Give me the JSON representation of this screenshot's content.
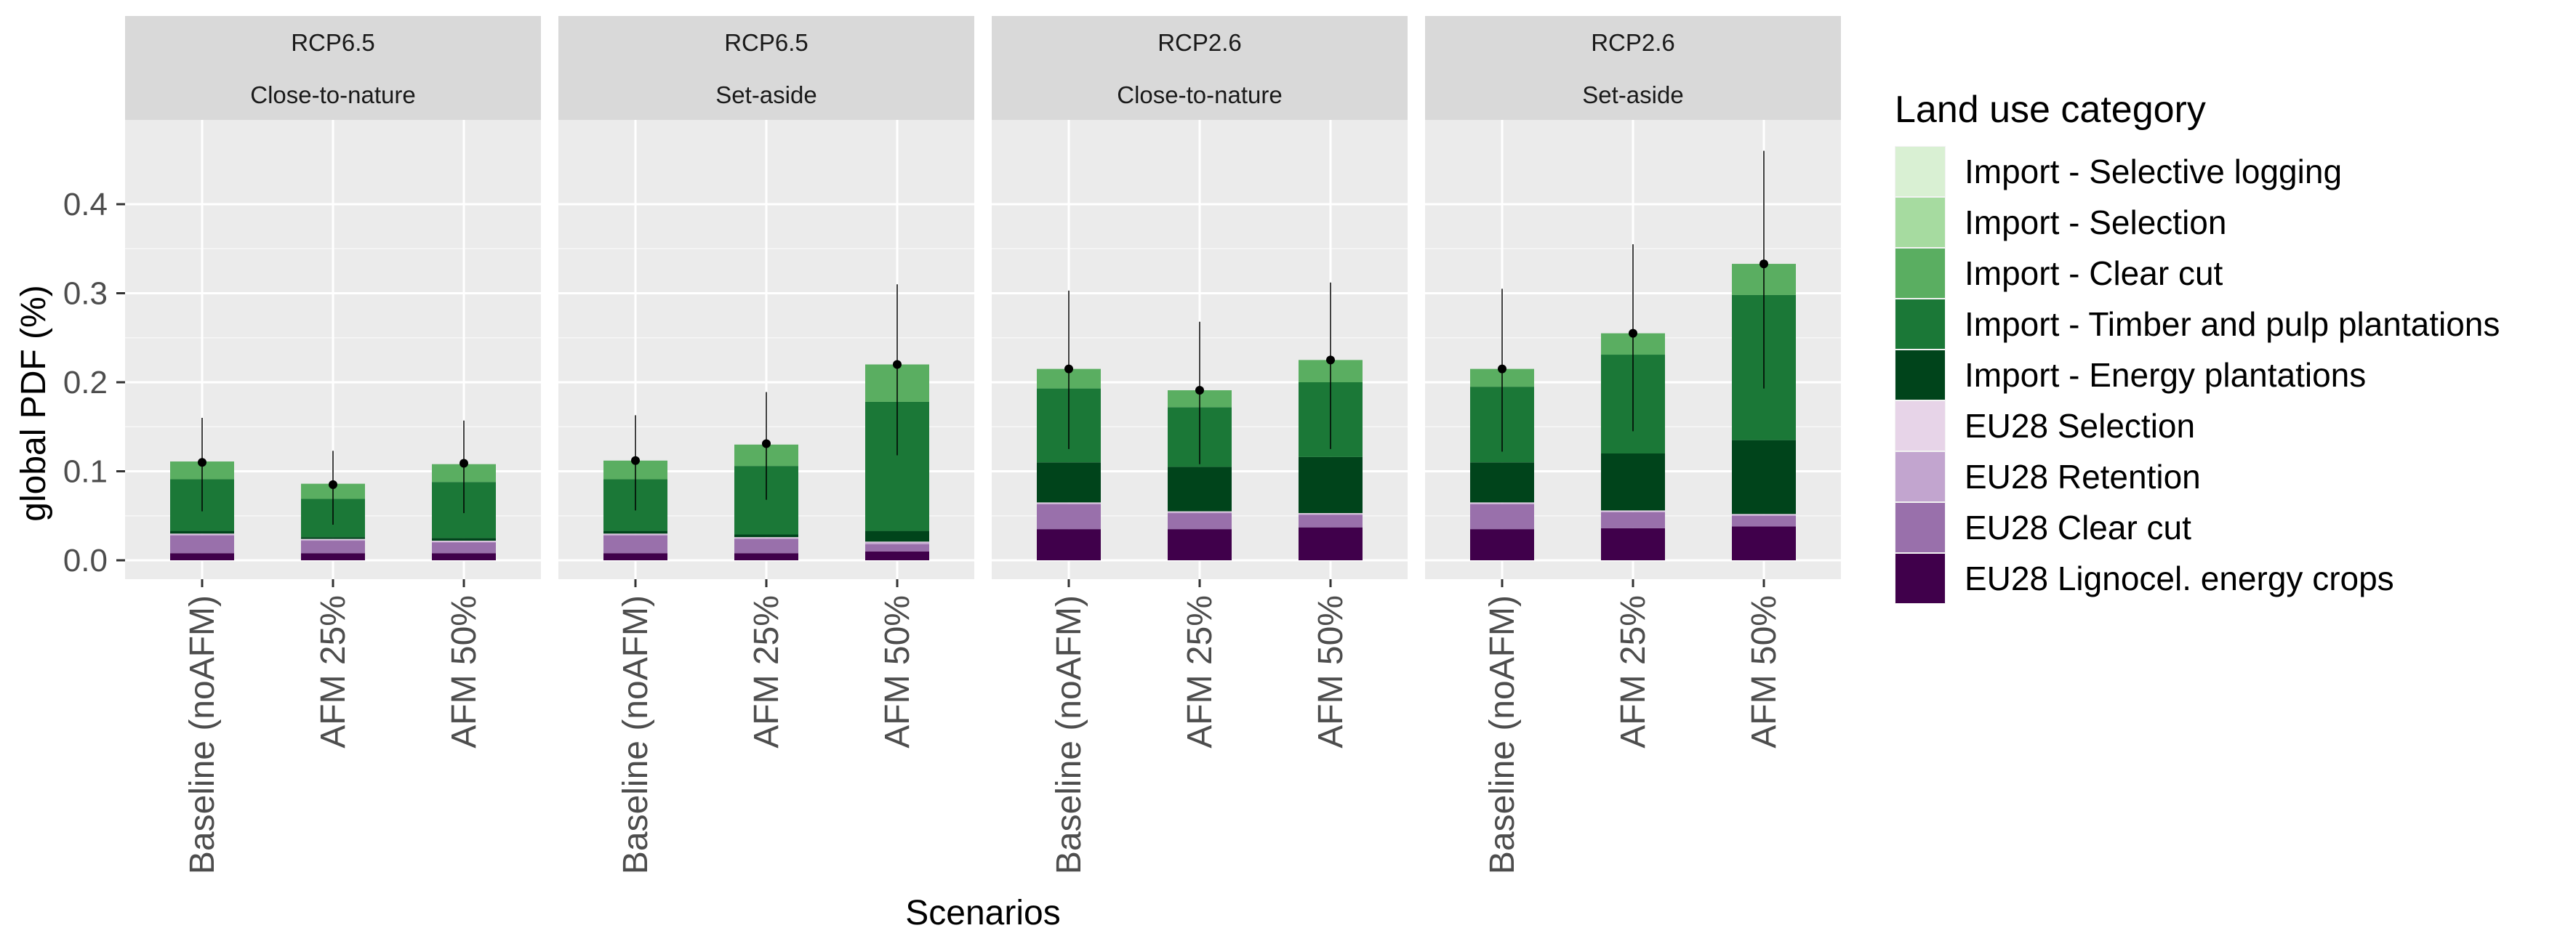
{
  "chart_data": {
    "type": "bar",
    "stacked": true,
    "ylabel": "global PDF (%)",
    "xlabel": "Scenarios",
    "ylim": [
      -0.01,
      0.47
    ],
    "y_ticks": [
      0.0,
      0.1,
      0.2,
      0.3,
      0.4
    ],
    "y_tick_labels": [
      "0.0",
      "0.1",
      "0.2",
      "0.3",
      "0.4"
    ],
    "grid": true,
    "legend_position": "right",
    "legend_title": "Land use category",
    "categories": [
      "Baseline (noAFM)",
      "AFM 25%",
      "AFM 50%"
    ],
    "layers": [
      {
        "name": "EU28 Lignocel. energy crops",
        "color": "#40004b"
      },
      {
        "name": "EU28 Clear cut",
        "color": "#9970ab"
      },
      {
        "name": "EU28 Retention",
        "color": "#c2a5cf"
      },
      {
        "name": "EU28 Selection",
        "color": "#e7d4e8"
      },
      {
        "name": "Import - Energy plantations",
        "color": "#00441b"
      },
      {
        "name": "Import - Timber and pulp plantations",
        "color": "#1b7837"
      },
      {
        "name": "Import - Clear cut",
        "color": "#5aae61"
      },
      {
        "name": "Import - Selection",
        "color": "#a6dba0"
      },
      {
        "name": "Import - Selective logging",
        "color": "#d9f0d3"
      }
    ],
    "legend_order": [
      "Import - Selective logging",
      "Import - Selection",
      "Import - Clear cut",
      "Import - Timber and pulp plantations",
      "Import - Energy plantations",
      "EU28 Selection",
      "EU28 Retention",
      "EU28 Clear cut",
      "EU28 Lignocel. energy crops"
    ],
    "panels": [
      {
        "strip_top": "RCP6.5",
        "strip_bottom": "Close-to-nature",
        "bars": [
          {
            "category": "Baseline (noAFM)",
            "values": [
              0.008,
              0.02,
              0.001,
              0.001,
              0.003,
              0.058,
              0.02,
              0.0,
              0.0
            ],
            "point": 0.11,
            "err_low": 0.055,
            "err_high": 0.16
          },
          {
            "category": "AFM 25%",
            "values": [
              0.008,
              0.014,
              0.001,
              0.001,
              0.002,
              0.043,
              0.017,
              0.0,
              0.0
            ],
            "point": 0.085,
            "err_low": 0.04,
            "err_high": 0.123
          },
          {
            "category": "AFM 50%",
            "values": [
              0.008,
              0.012,
              0.001,
              0.001,
              0.003,
              0.063,
              0.02,
              0.0,
              0.0
            ],
            "point": 0.109,
            "err_low": 0.053,
            "err_high": 0.157
          }
        ]
      },
      {
        "strip_top": "RCP6.5",
        "strip_bottom": "Set-aside",
        "bars": [
          {
            "category": "Baseline (noAFM)",
            "values": [
              0.008,
              0.02,
              0.001,
              0.001,
              0.003,
              0.058,
              0.021,
              0.0,
              0.0
            ],
            "point": 0.112,
            "err_low": 0.056,
            "err_high": 0.163
          },
          {
            "category": "AFM 25%",
            "values": [
              0.008,
              0.016,
              0.001,
              0.001,
              0.003,
              0.077,
              0.024,
              0.0,
              0.0
            ],
            "point": 0.131,
            "err_low": 0.068,
            "err_high": 0.189
          },
          {
            "category": "AFM 50%",
            "values": [
              0.01,
              0.008,
              0.002,
              0.001,
              0.012,
              0.145,
              0.042,
              0.0,
              0.0
            ],
            "point": 0.22,
            "err_low": 0.118,
            "err_high": 0.31
          }
        ]
      },
      {
        "strip_top": "RCP2.6",
        "strip_bottom": "Close-to-nature",
        "bars": [
          {
            "category": "Baseline (noAFM)",
            "values": [
              0.035,
              0.028,
              0.001,
              0.001,
              0.045,
              0.083,
              0.022,
              0.0,
              0.0
            ],
            "point": 0.215,
            "err_low": 0.125,
            "err_high": 0.303
          },
          {
            "category": "AFM 25%",
            "values": [
              0.035,
              0.018,
              0.001,
              0.001,
              0.05,
              0.067,
              0.019,
              0.0,
              0.0
            ],
            "point": 0.191,
            "err_low": 0.108,
            "err_high": 0.268
          },
          {
            "category": "AFM 50%",
            "values": [
              0.037,
              0.014,
              0.001,
              0.001,
              0.063,
              0.084,
              0.025,
              0.0,
              0.0
            ],
            "point": 0.225,
            "err_low": 0.125,
            "err_high": 0.312
          }
        ]
      },
      {
        "strip_top": "RCP2.6",
        "strip_bottom": "Set-aside",
        "bars": [
          {
            "category": "Baseline (noAFM)",
            "values": [
              0.035,
              0.028,
              0.001,
              0.001,
              0.045,
              0.085,
              0.02,
              0.0,
              0.0
            ],
            "point": 0.215,
            "err_low": 0.122,
            "err_high": 0.305
          },
          {
            "category": "AFM 25%",
            "values": [
              0.036,
              0.018,
              0.001,
              0.001,
              0.064,
              0.111,
              0.024,
              0.0,
              0.0
            ],
            "point": 0.255,
            "err_low": 0.145,
            "err_high": 0.355
          },
          {
            "category": "AFM 50%",
            "values": [
              0.038,
              0.012,
              0.001,
              0.001,
              0.083,
              0.163,
              0.035,
              0.0,
              0.0
            ],
            "point": 0.333,
            "err_low": 0.193,
            "err_high": 0.46
          }
        ]
      }
    ]
  }
}
